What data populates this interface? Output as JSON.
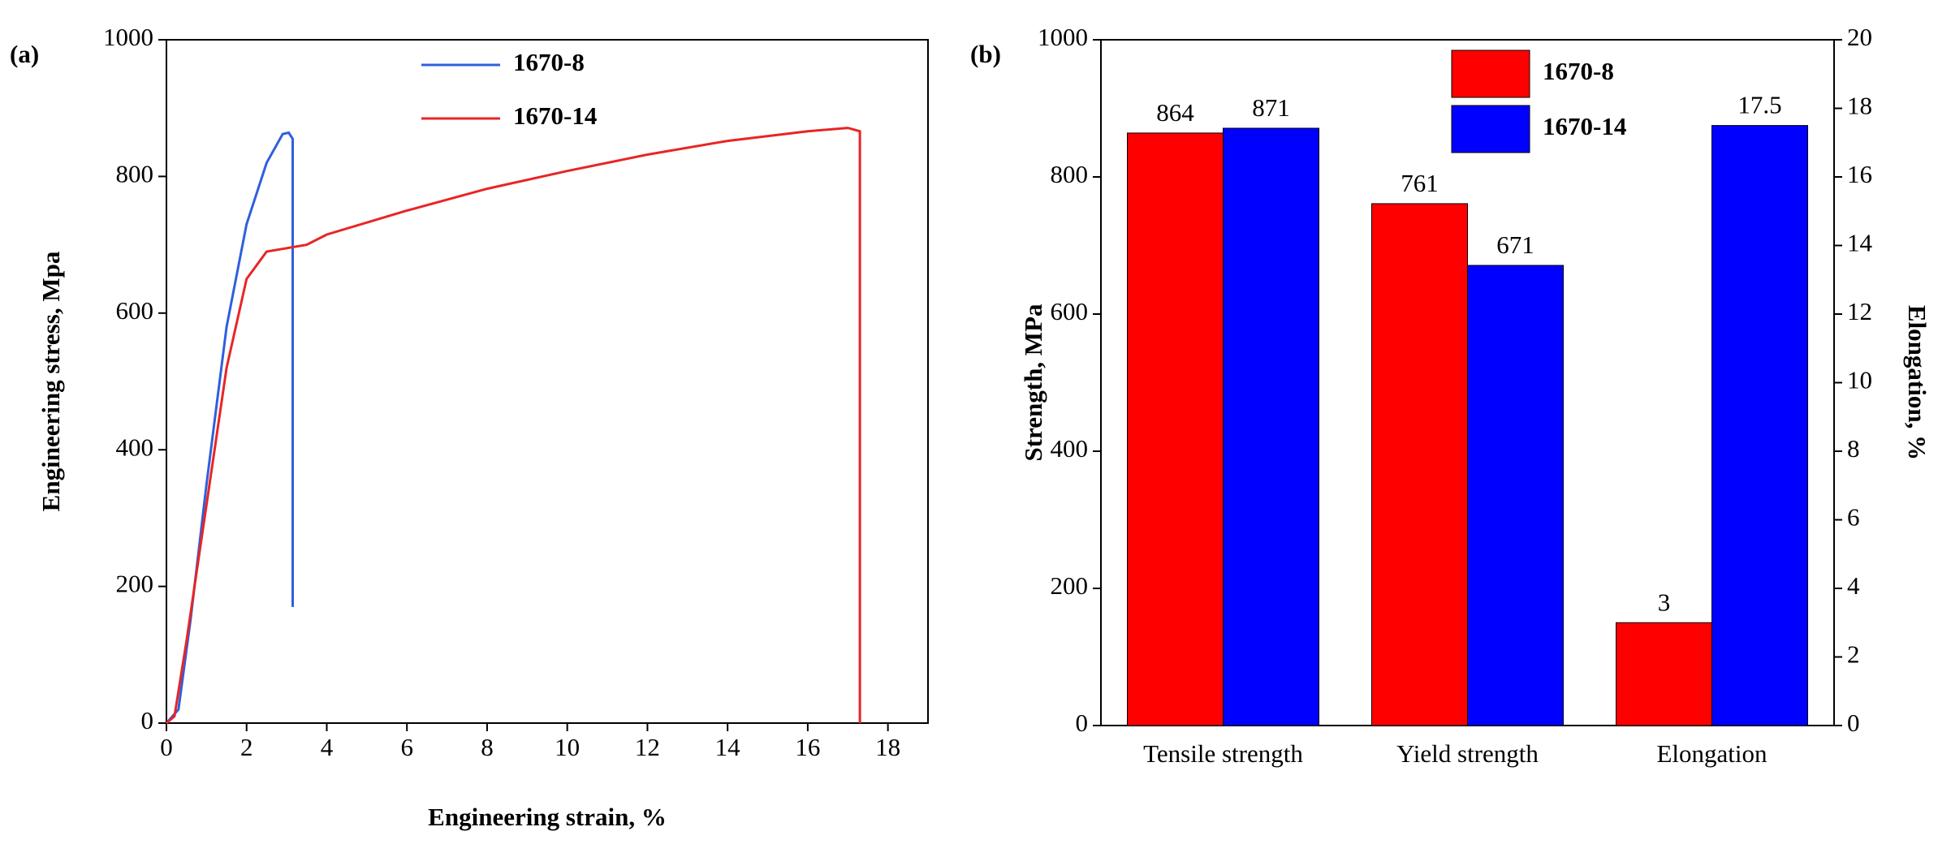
{
  "chart_data": [
    {
      "type": "line",
      "label": "(a)",
      "xlabel": "Engineering strain, %",
      "ylabel": "Engineering stress, Mpa",
      "xlim": [
        0,
        19
      ],
      "xticks": [
        0,
        2,
        4,
        6,
        8,
        10,
        12,
        14,
        16,
        18
      ],
      "ylim": [
        0,
        1000
      ],
      "yticks": [
        0,
        200,
        400,
        600,
        800,
        1000
      ],
      "series": [
        {
          "name": "1670-8",
          "color": "#2f5fdc",
          "x": [
            0,
            0.3,
            0.6,
            1,
            1.5,
            2,
            2.5,
            2.9,
            3.05,
            3.15,
            3.15
          ],
          "values": [
            0,
            20,
            150,
            350,
            580,
            730,
            820,
            862,
            864,
            855,
            170
          ]
        },
        {
          "name": "1670-14",
          "color": "#e82525",
          "x": [
            0,
            0.2,
            0.5,
            1,
            1.5,
            2,
            2.5,
            3,
            3.5,
            4,
            6,
            8,
            10,
            12,
            14,
            16,
            17,
            17.3,
            17.3
          ],
          "values": [
            0,
            10,
            120,
            320,
            520,
            650,
            690,
            695,
            700,
            715,
            750,
            782,
            808,
            832,
            852,
            866,
            871,
            866,
            0
          ]
        }
      ]
    },
    {
      "type": "bar",
      "label": "(b)",
      "ylabel": "Strength, MPa",
      "y2label": "Elongation, %",
      "categories": [
        "Tensile strength",
        "Yield strength",
        "Elongation"
      ],
      "category_axes": [
        "y",
        "y",
        "y2"
      ],
      "ylim": [
        0,
        1000
      ],
      "yticks": [
        0,
        200,
        400,
        600,
        800,
        1000
      ],
      "y2lim": [
        0,
        20
      ],
      "y2ticks": [
        0,
        2,
        4,
        6,
        8,
        10,
        12,
        14,
        16,
        18,
        20
      ],
      "series": [
        {
          "name": "1670-8",
          "color": "#ff0000",
          "values": [
            864,
            761,
            3
          ]
        },
        {
          "name": "1670-14",
          "color": "#0000ff",
          "values": [
            871,
            671,
            17.5
          ]
        }
      ]
    }
  ]
}
